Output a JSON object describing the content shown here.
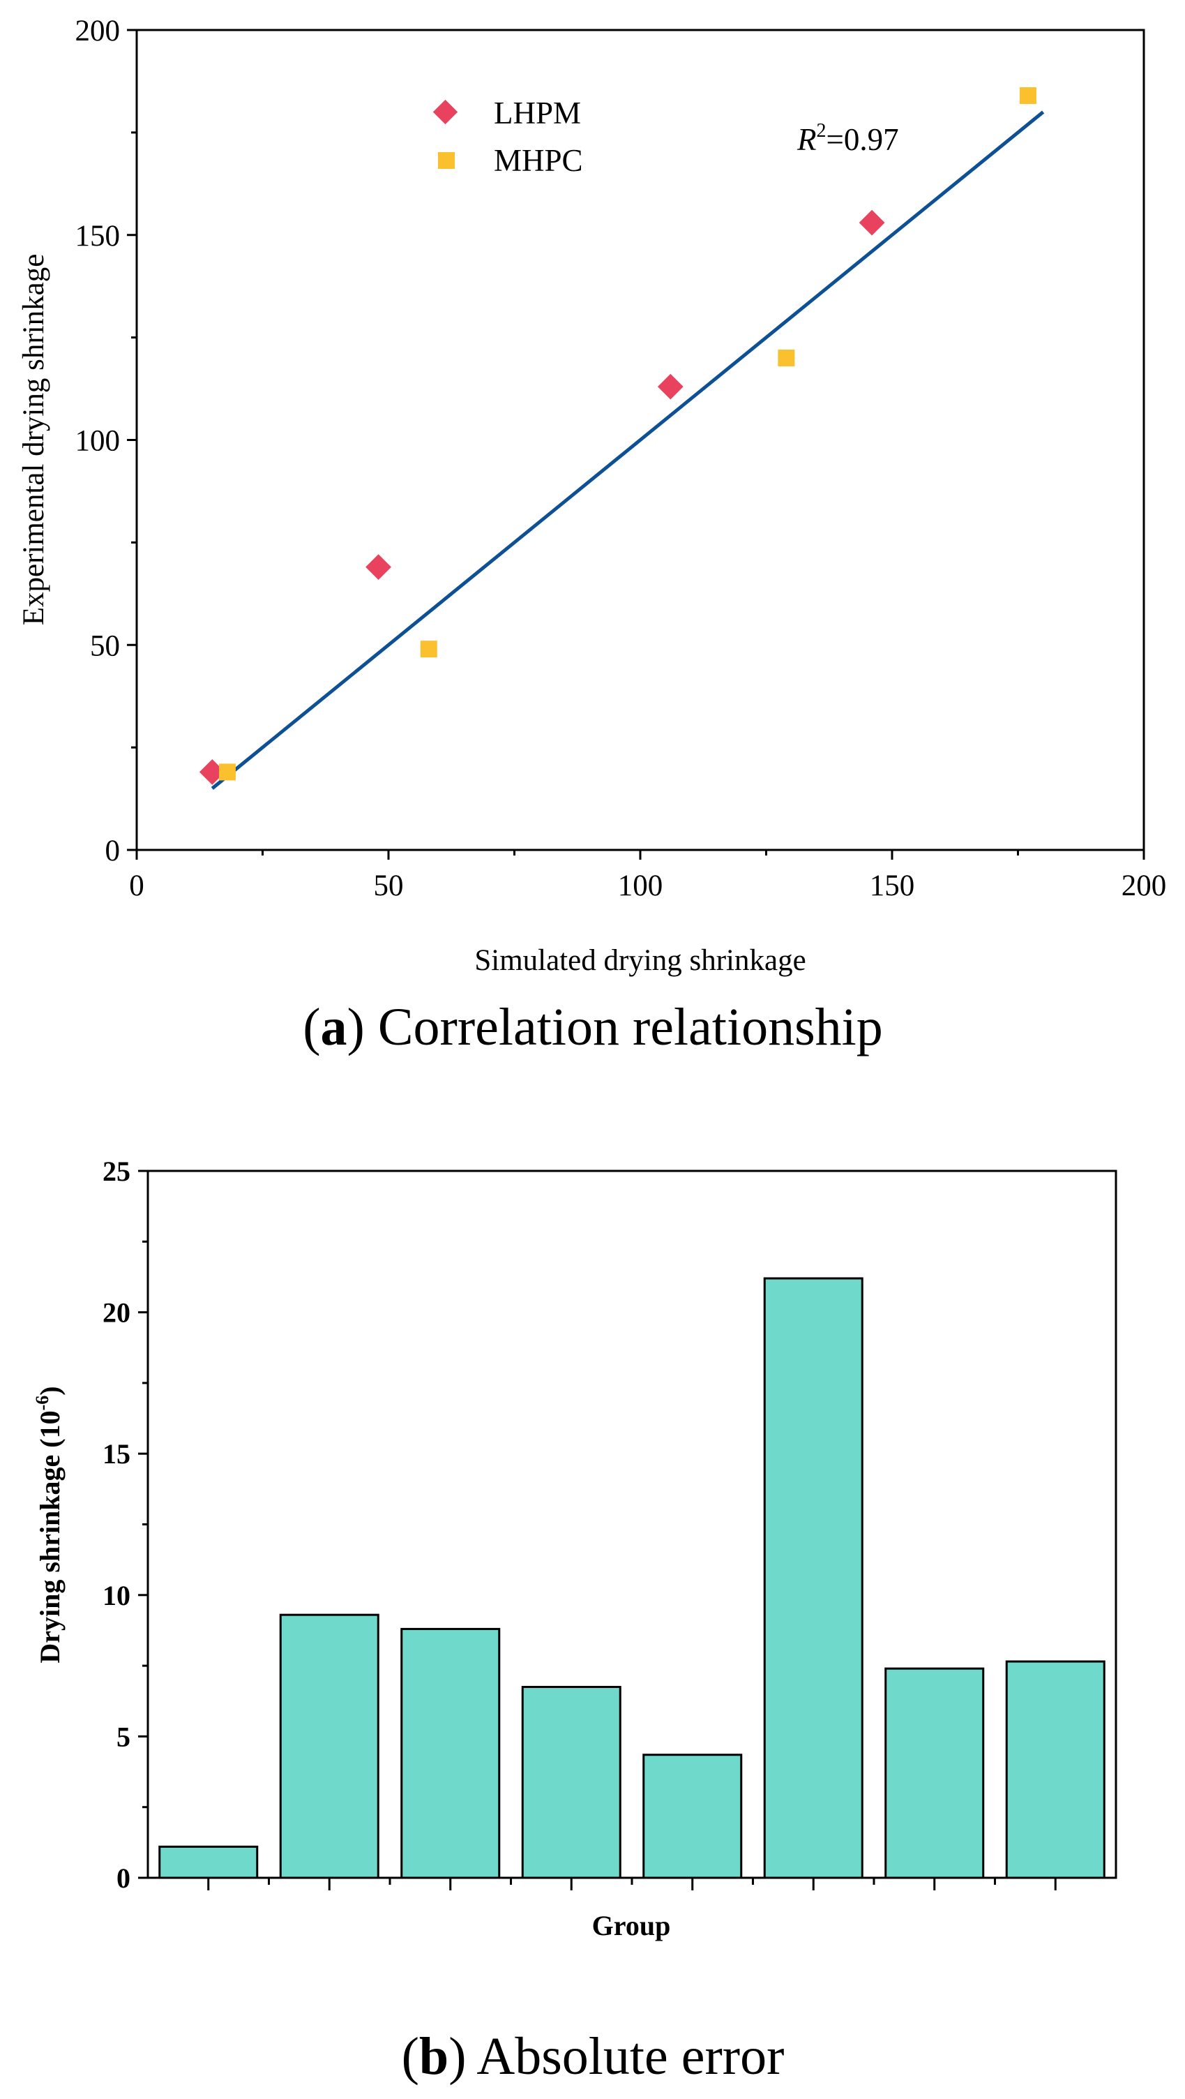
{
  "chart_data": [
    {
      "type": "scatter",
      "panel": "a",
      "xlabel": "Simulated drying shrinkage",
      "ylabel": "Experimental drying shrinkage",
      "xlim": [
        0,
        200
      ],
      "ylim": [
        0,
        200
      ],
      "x_ticks": [
        "0",
        "50",
        "100",
        "150",
        "200"
      ],
      "y_ticks": [
        "0",
        "50",
        "100",
        "150",
        "200"
      ],
      "series": [
        {
          "name": "LHPM",
          "marker": "diamond",
          "color": "#e8425f",
          "x": [
            15,
            48,
            106,
            146
          ],
          "y": [
            19,
            69,
            113,
            153
          ]
        },
        {
          "name": "MHPC",
          "marker": "square",
          "color": "#fbc02d",
          "x": [
            18,
            58,
            129,
            177
          ],
          "y": [
            19,
            49,
            120,
            184
          ]
        }
      ],
      "fit_line": {
        "color": "#0d5194",
        "x": [
          15,
          180
        ],
        "y": [
          15,
          180
        ]
      },
      "annotation": {
        "r_symbol": "R",
        "r_power": "2",
        "r_value": "=0.97"
      },
      "caption": {
        "letter": "a",
        "text": "Correlation relationship"
      }
    },
    {
      "type": "bar",
      "panel": "b",
      "xlabel": "Group",
      "ylabel_main": "Drying shrinkage (10",
      "ylabel_exp": "-6",
      "ylabel_close": ")",
      "ylim": [
        0,
        25
      ],
      "y_ticks": [
        "0",
        "5",
        "10",
        "15",
        "20",
        "25"
      ],
      "bar_color": "#6fd9cc",
      "values": [
        1.1,
        9.3,
        8.8,
        6.75,
        4.35,
        21.2,
        7.4,
        7.65
      ],
      "caption": {
        "letter": "b",
        "text": "Absolute error"
      }
    }
  ]
}
